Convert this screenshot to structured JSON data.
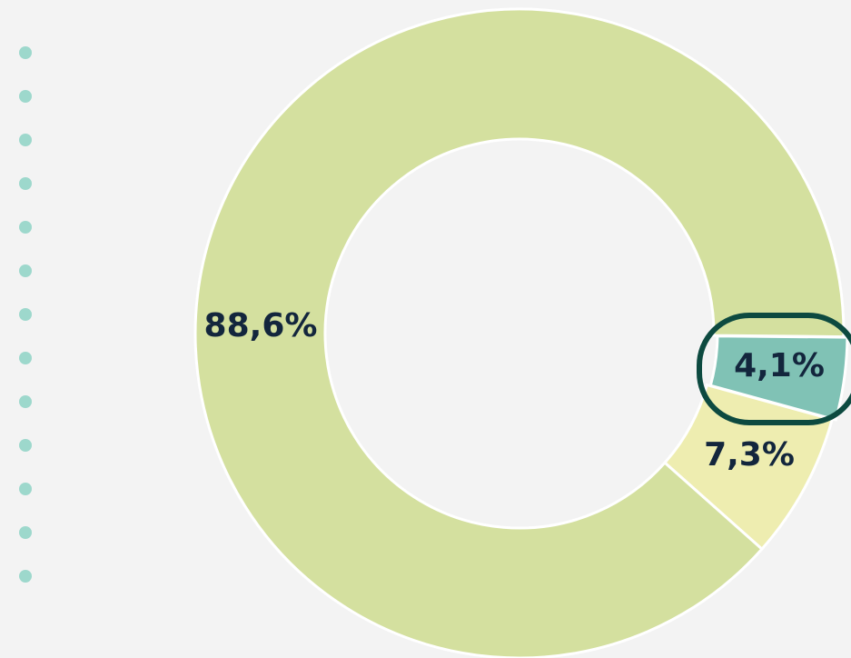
{
  "chart_data": {
    "type": "pie",
    "donut": true,
    "categories": [
      null,
      null,
      null
    ],
    "values": [
      4.1,
      7.3,
      88.6
    ],
    "value_labels": [
      "4,1%",
      "7,3%",
      "88,6%"
    ],
    "colors": [
      "#80c2b5",
      "#eeedb0",
      "#d4e09f"
    ]
  }
}
